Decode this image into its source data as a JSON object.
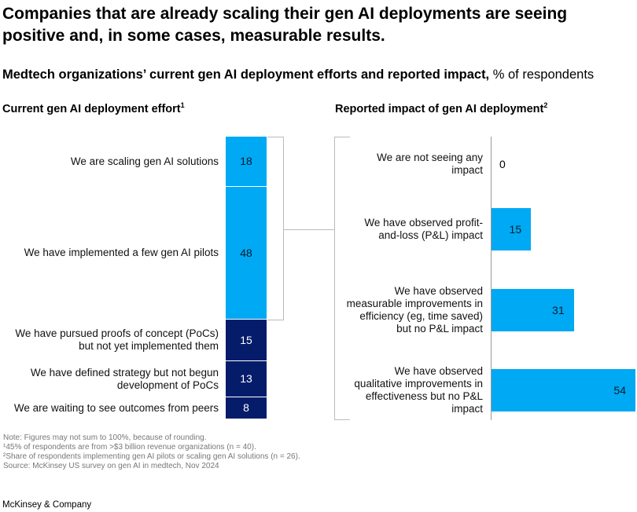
{
  "title": "Companies that are already scaling their gen AI deployments are seeing positive and, in some cases, measurable results.",
  "subtitle_bold": "Medtech organizations’ current gen AI deployment efforts and reported impact,",
  "subtitle_unit": " % of respondents",
  "notes": [
    "Note: Figures may not sum to 100%, because of rounding.",
    "¹45% of respondents are from >$3 billion revenue organizations (n = 40).",
    "²Share of respondents implementing gen AI pilots or scaling gen AI solutions (n = 26).",
    "Source: McKinsey US survey on gen AI in medtech, Nov 2024"
  ],
  "brand": "McKinsey & Company",
  "colors": {
    "light_blue": "#00a9f4",
    "navy": "#051c6b"
  },
  "chart_data": [
    {
      "type": "bar",
      "stacked": true,
      "title": "Current gen AI deployment effort",
      "title_sup": "1",
      "categories": [
        "We are scaling gen AI solutions",
        "We have implemented a few gen AI pilots",
        "We have pursued proofs of concept (PoCs) but not yet implemented them",
        "We have defined strategy but not begun development of PoCs",
        "We are waiting to see outcomes from peers"
      ],
      "values": [
        18,
        48,
        15,
        13,
        8
      ],
      "segment_colors": [
        "#00a9f4",
        "#00a9f4",
        "#051c6b",
        "#051c6b",
        "#051c6b"
      ]
    },
    {
      "type": "bar",
      "orientation": "horizontal",
      "title": "Reported impact of gen AI deployment",
      "title_sup": "2",
      "categories": [
        "We are not seeing any impact",
        "We have observed profit-and-loss (P&L) impact",
        "We have observed measurable improvements in efficiency (eg, time saved) but no P&L impact",
        "We have observed qualitative improvements in effectiveness but no P&L impact"
      ],
      "values": [
        0,
        15,
        31,
        54
      ],
      "xlim": [
        0,
        54
      ]
    }
  ]
}
